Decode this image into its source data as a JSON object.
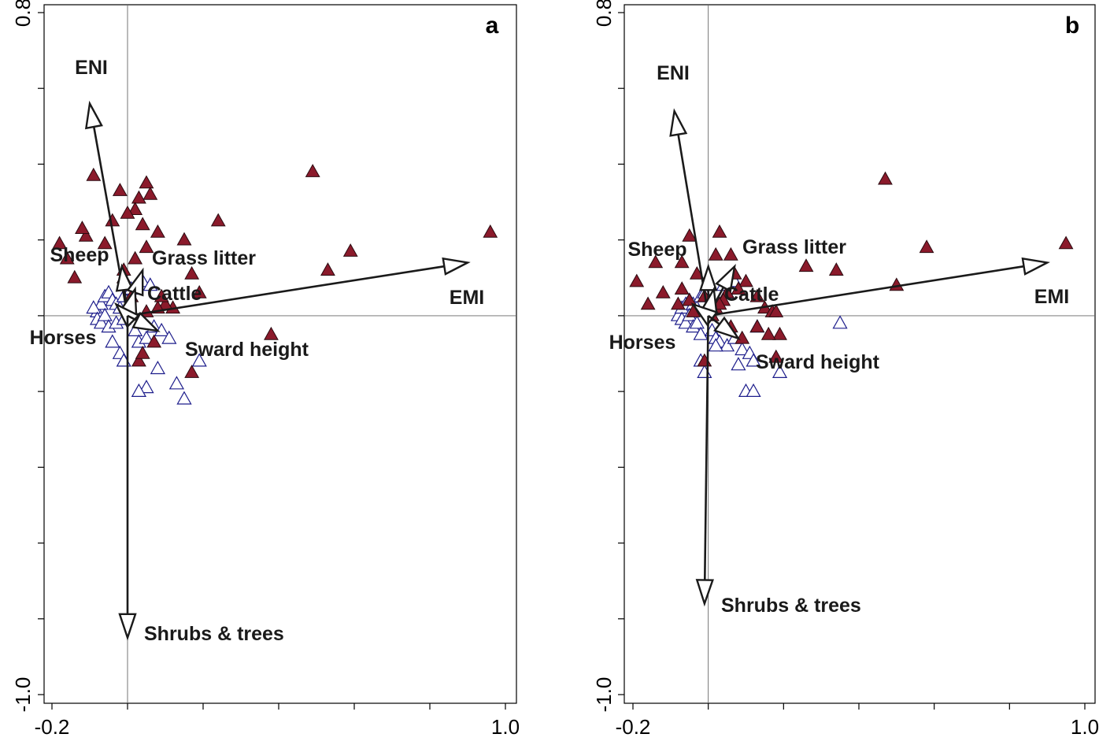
{
  "chart_data": [
    {
      "type": "scatter",
      "panel_label": "a",
      "xlim": [
        -0.2,
        1.0
      ],
      "ylim": [
        -1.0,
        0.8
      ],
      "x_ticks": [
        -0.2,
        1.0
      ],
      "y_ticks": [
        0.8,
        -1.0
      ],
      "filled_points": {
        "color": "#8b1a2b",
        "x": [
          -0.02,
          -0.09,
          -0.04,
          -0.06,
          -0.11,
          -0.12,
          -0.16,
          -0.18,
          -0.14,
          0.05,
          0.06,
          0.03,
          0.02,
          0.0,
          0.08,
          0.04,
          0.15,
          0.24,
          0.49,
          0.53,
          0.59,
          0.96,
          0.38,
          0.12,
          0.1,
          0.19,
          0.17,
          0.02,
          0.05,
          0.08,
          0.05,
          0.09,
          0.01,
          0.0,
          -0.01,
          0.07,
          0.03,
          0.04,
          0.17,
          -0.01
        ],
        "y": [
          0.33,
          0.37,
          0.25,
          0.19,
          0.21,
          0.23,
          0.15,
          0.19,
          0.1,
          0.35,
          0.32,
          0.31,
          0.28,
          0.27,
          0.22,
          0.24,
          0.2,
          0.25,
          0.38,
          0.12,
          0.17,
          0.22,
          -0.05,
          0.02,
          0.03,
          0.06,
          0.11,
          0.15,
          0.18,
          0.02,
          0.01,
          0.05,
          0.05,
          0.08,
          0.12,
          -0.07,
          -0.12,
          -0.1,
          -0.15,
          0.1
        ]
      },
      "open_points": {
        "color": "#1e1e8c",
        "x": [
          -0.08,
          -0.07,
          -0.09,
          -0.06,
          -0.05,
          -0.04,
          -0.03,
          -0.02,
          -0.01,
          -0.08,
          -0.07,
          -0.06,
          -0.05,
          -0.03,
          -0.01,
          0.02,
          0.03,
          0.05,
          0.07,
          0.09,
          0.11,
          0.13,
          0.19,
          0.01,
          0.04,
          0.06,
          -0.02,
          -0.01,
          0.08,
          0.05,
          0.15,
          0.03,
          -0.04
        ],
        "y": [
          0.01,
          0.03,
          0.02,
          0.05,
          0.06,
          0.04,
          0.03,
          0.02,
          0.05,
          -0.01,
          -0.02,
          0.0,
          -0.03,
          -0.02,
          -0.01,
          -0.04,
          -0.07,
          -0.06,
          -0.03,
          -0.04,
          -0.06,
          -0.18,
          -0.12,
          0.07,
          0.09,
          0.08,
          -0.1,
          -0.12,
          -0.14,
          -0.19,
          -0.22,
          -0.2,
          -0.07
        ]
      },
      "arrows": [
        {
          "label": "ENI",
          "x": -0.1,
          "y": 0.56
        },
        {
          "label": "EMI",
          "x": 0.9,
          "y": 0.14
        },
        {
          "label": "Sheep",
          "x": -0.015,
          "y": 0.13
        },
        {
          "label": "Grass litter",
          "x": 0.04,
          "y": 0.12
        },
        {
          "label": "Cattle",
          "x": 0.02,
          "y": 0.07
        },
        {
          "label": "Horses",
          "x": -0.03,
          "y": 0.03
        },
        {
          "label": "Sward height",
          "x": 0.08,
          "y": -0.04
        },
        {
          "label": "Shrubs & trees",
          "x": 0.0,
          "y": -0.85
        }
      ]
    },
    {
      "type": "scatter",
      "panel_label": "b",
      "xlim": [
        -0.2,
        1.0
      ],
      "ylim": [
        -1.0,
        0.8
      ],
      "x_ticks": [
        -0.2,
        1.0
      ],
      "y_ticks": [
        0.8,
        -1.0
      ],
      "filled_points": {
        "color": "#8b1a2b",
        "x": [
          -0.05,
          -0.07,
          -0.14,
          -0.19,
          -0.07,
          -0.05,
          -0.03,
          0.03,
          0.02,
          0.06,
          0.07,
          0.1,
          0.08,
          0.13,
          0.15,
          0.17,
          0.26,
          0.47,
          0.58,
          0.95,
          0.5,
          0.34,
          0.19,
          0.18,
          -0.08,
          -0.04,
          -0.01,
          -0.16,
          -0.12,
          0.05,
          0.04,
          0.02,
          0.01,
          0.03,
          0.06,
          0.09,
          0.13,
          0.18,
          0.16,
          -0.01
        ],
        "y": [
          0.21,
          0.14,
          0.14,
          0.09,
          0.07,
          0.04,
          0.11,
          0.22,
          0.16,
          0.16,
          0.11,
          0.09,
          0.07,
          0.05,
          0.02,
          0.01,
          0.13,
          0.36,
          0.18,
          0.19,
          0.08,
          0.12,
          -0.05,
          -0.11,
          0.03,
          0.01,
          0.05,
          0.03,
          0.06,
          0.06,
          0.04,
          0.02,
          0.0,
          0.03,
          -0.03,
          -0.06,
          -0.03,
          0.01,
          -0.05,
          -0.12
        ]
      },
      "open_points": {
        "color": "#1e1e8c",
        "x": [
          -0.08,
          -0.07,
          -0.06,
          -0.05,
          -0.04,
          -0.03,
          -0.02,
          -0.01,
          0.0,
          -0.07,
          -0.06,
          -0.05,
          -0.04,
          -0.03,
          -0.02,
          0.01,
          0.02,
          0.03,
          0.05,
          0.07,
          0.09,
          0.11,
          0.12,
          0.19,
          0.04,
          0.05,
          0.07,
          -0.02,
          -0.01,
          0.08,
          0.1,
          0.12,
          0.02,
          0.35,
          0.13
        ],
        "y": [
          0.0,
          0.02,
          0.03,
          0.04,
          0.03,
          0.02,
          0.05,
          0.06,
          0.01,
          -0.01,
          -0.02,
          0.0,
          -0.03,
          -0.02,
          -0.05,
          -0.04,
          -0.06,
          -0.07,
          -0.08,
          -0.06,
          -0.09,
          -0.1,
          -0.12,
          -0.15,
          0.08,
          0.06,
          0.09,
          -0.12,
          -0.15,
          -0.13,
          -0.2,
          -0.2,
          -0.08,
          -0.02,
          -0.03
        ]
      },
      "arrows": [
        {
          "label": "ENI",
          "x": -0.09,
          "y": 0.54
        },
        {
          "label": "EMI",
          "x": 0.9,
          "y": 0.14
        },
        {
          "label": "Sheep",
          "x": 0.0,
          "y": 0.13
        },
        {
          "label": "Grass litter",
          "x": 0.07,
          "y": 0.13
        },
        {
          "label": "Cattle",
          "x": 0.015,
          "y": 0.07
        },
        {
          "label": "Horses",
          "x": -0.04,
          "y": 0.03
        },
        {
          "label": "Sward height",
          "x": 0.08,
          "y": -0.06
        },
        {
          "label": "Shrubs & trees",
          "x": -0.01,
          "y": -0.76
        }
      ]
    }
  ]
}
